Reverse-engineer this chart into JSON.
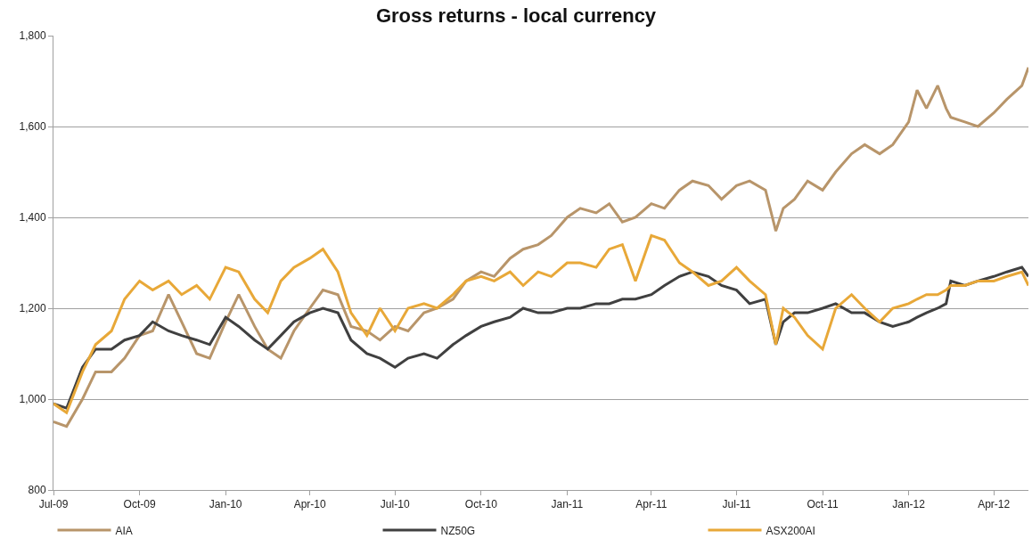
{
  "chart_data": {
    "type": "line",
    "title": "Gross returns - local currency",
    "x": [
      "2009-07-01",
      "2009-07-15",
      "2009-08-01",
      "2009-08-15",
      "2009-09-01",
      "2009-09-15",
      "2009-10-01",
      "2009-10-15",
      "2009-11-01",
      "2009-11-15",
      "2009-12-01",
      "2009-12-15",
      "2010-01-01",
      "2010-01-15",
      "2010-02-01",
      "2010-02-15",
      "2010-03-01",
      "2010-03-15",
      "2010-04-01",
      "2010-04-15",
      "2010-05-01",
      "2010-05-15",
      "2010-06-01",
      "2010-06-15",
      "2010-07-01",
      "2010-07-15",
      "2010-08-01",
      "2010-08-15",
      "2010-09-01",
      "2010-09-15",
      "2010-10-01",
      "2010-10-15",
      "2010-11-01",
      "2010-11-15",
      "2010-12-01",
      "2010-12-15",
      "2011-01-01",
      "2011-01-15",
      "2011-02-01",
      "2011-02-15",
      "2011-03-01",
      "2011-03-15",
      "2011-04-01",
      "2011-04-15",
      "2011-05-01",
      "2011-05-15",
      "2011-06-01",
      "2011-06-15",
      "2011-07-01",
      "2011-07-15",
      "2011-08-01",
      "2011-08-12",
      "2011-08-20",
      "2011-09-01",
      "2011-09-15",
      "2011-10-01",
      "2011-10-15",
      "2011-11-01",
      "2011-11-15",
      "2011-12-01",
      "2011-12-15",
      "2012-01-01",
      "2012-01-10",
      "2012-01-20",
      "2012-02-01",
      "2012-02-10",
      "2012-02-15",
      "2012-03-01",
      "2012-03-15",
      "2012-04-01",
      "2012-04-15",
      "2012-05-01",
      "2012-05-08"
    ],
    "series": [
      {
        "name": "AIA",
        "color": "#b8956a",
        "values": [
          950,
          940,
          1000,
          1060,
          1060,
          1090,
          1140,
          1150,
          1230,
          1170,
          1100,
          1090,
          1170,
          1230,
          1160,
          1110,
          1090,
          1150,
          1200,
          1240,
          1230,
          1160,
          1150,
          1130,
          1160,
          1150,
          1190,
          1200,
          1220,
          1260,
          1280,
          1270,
          1310,
          1330,
          1340,
          1360,
          1400,
          1420,
          1410,
          1430,
          1390,
          1400,
          1430,
          1420,
          1460,
          1480,
          1470,
          1440,
          1470,
          1480,
          1460,
          1370,
          1420,
          1440,
          1480,
          1460,
          1500,
          1540,
          1560,
          1540,
          1560,
          1610,
          1680,
          1640,
          1690,
          1640,
          1620,
          1610,
          1600,
          1630,
          1660,
          1690,
          1730
        ]
      },
      {
        "name": "NZ50G",
        "color": "#404040",
        "values": [
          990,
          980,
          1070,
          1110,
          1110,
          1130,
          1140,
          1170,
          1150,
          1140,
          1130,
          1120,
          1180,
          1160,
          1130,
          1110,
          1140,
          1170,
          1190,
          1200,
          1190,
          1130,
          1100,
          1090,
          1070,
          1090,
          1100,
          1090,
          1120,
          1140,
          1160,
          1170,
          1180,
          1200,
          1190,
          1190,
          1200,
          1200,
          1210,
          1210,
          1220,
          1220,
          1230,
          1250,
          1270,
          1280,
          1270,
          1250,
          1240,
          1210,
          1220,
          1120,
          1170,
          1190,
          1190,
          1200,
          1210,
          1190,
          1190,
          1170,
          1160,
          1170,
          1180,
          1190,
          1200,
          1210,
          1260,
          1250,
          1260,
          1270,
          1280,
          1290,
          1270
        ]
      },
      {
        "name": "ASX200AI",
        "color": "#e8a838",
        "values": [
          990,
          970,
          1060,
          1120,
          1150,
          1220,
          1260,
          1240,
          1260,
          1230,
          1250,
          1220,
          1290,
          1280,
          1220,
          1190,
          1260,
          1290,
          1310,
          1330,
          1280,
          1190,
          1140,
          1200,
          1150,
          1200,
          1210,
          1200,
          1230,
          1260,
          1270,
          1260,
          1280,
          1250,
          1280,
          1270,
          1300,
          1300,
          1290,
          1330,
          1340,
          1260,
          1360,
          1350,
          1300,
          1280,
          1250,
          1260,
          1290,
          1260,
          1230,
          1120,
          1200,
          1180,
          1140,
          1110,
          1200,
          1230,
          1200,
          1170,
          1200,
          1210,
          1220,
          1230,
          1230,
          1240,
          1250,
          1250,
          1260,
          1260,
          1270,
          1280,
          1250
        ]
      }
    ],
    "xlim": [
      "2009-07-01",
      "2012-05-08"
    ],
    "xticks": [
      {
        "value": "2009-07-01",
        "label": "Jul-09"
      },
      {
        "value": "2009-10-01",
        "label": "Oct-09"
      },
      {
        "value": "2010-01-01",
        "label": "Jan-10"
      },
      {
        "value": "2010-04-01",
        "label": "Apr-10"
      },
      {
        "value": "2010-07-01",
        "label": "Jul-10"
      },
      {
        "value": "2010-10-01",
        "label": "Oct-10"
      },
      {
        "value": "2011-01-01",
        "label": "Jan-11"
      },
      {
        "value": "2011-04-01",
        "label": "Apr-11"
      },
      {
        "value": "2011-07-01",
        "label": "Jul-11"
      },
      {
        "value": "2011-10-01",
        "label": "Oct-11"
      },
      {
        "value": "2012-01-01",
        "label": "Jan-12"
      },
      {
        "value": "2012-04-01",
        "label": "Apr-12"
      }
    ],
    "ylim": [
      800,
      1800
    ],
    "yticks": [
      {
        "value": 800,
        "label": "800"
      },
      {
        "value": 1000,
        "label": "1,000"
      },
      {
        "value": 1200,
        "label": "1,200"
      },
      {
        "value": 1400,
        "label": "1,400"
      },
      {
        "value": 1600,
        "label": "1,600"
      },
      {
        "value": 1800,
        "label": "1,800"
      }
    ],
    "grid": "y",
    "legend": "bottom",
    "marker": "none",
    "line_style": "solid"
  }
}
